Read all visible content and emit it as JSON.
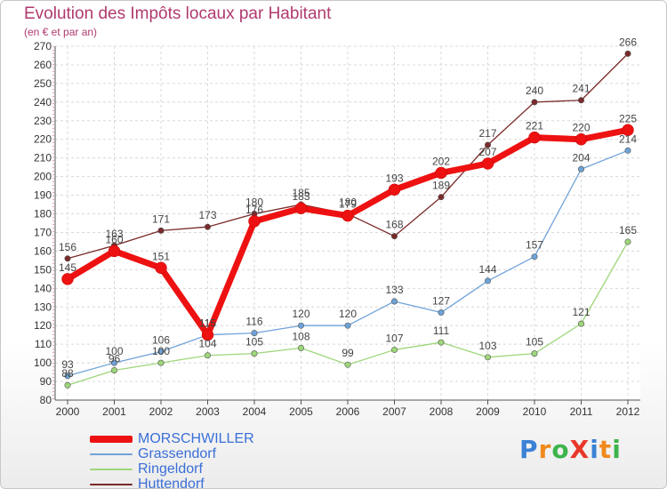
{
  "header": {
    "title": "Evolution des Impôts locaux par Habitant",
    "subtitle": "(en € et par an)"
  },
  "logo": {
    "text": "ProXiti",
    "letter_colors": [
      "#3b82d6",
      "#f08a1c",
      "#3cb44b",
      "#e8382a",
      "#3b82d6",
      "#f08a1c",
      "#3cb44b"
    ]
  },
  "chart_data": {
    "type": "line",
    "title": "Evolution des Impôts locaux par Habitant",
    "subtitle": "(en € et par an)",
    "xlabel": "",
    "ylabel": "",
    "x": [
      "2000",
      "2001",
      "2002",
      "2003",
      "2004",
      "2005",
      "2006",
      "2007",
      "2008",
      "2009",
      "2010",
      "2011",
      "2012"
    ],
    "ylim": [
      80,
      270
    ],
    "yticks": [
      80,
      90,
      100,
      110,
      120,
      130,
      140,
      150,
      160,
      170,
      180,
      190,
      200,
      210,
      220,
      230,
      240,
      250,
      260,
      270
    ],
    "grid": true,
    "legend_position": "bottom-left",
    "series": [
      {
        "name": "MORSCHWILLER",
        "color": "#ee1111",
        "values": [
          145,
          160,
          151,
          115,
          176,
          183,
          179,
          193,
          202,
          207,
          221,
          220,
          225
        ]
      },
      {
        "name": "Grassendorf",
        "color": "#6fa3d8",
        "values": [
          93,
          100,
          106,
          115,
          116,
          120,
          120,
          133,
          127,
          144,
          157,
          204,
          214
        ]
      },
      {
        "name": "Ringeldorf",
        "color": "#9ed67a",
        "values": [
          88,
          96,
          100,
          104,
          105,
          108,
          99,
          107,
          111,
          103,
          105,
          121,
          165
        ]
      },
      {
        "name": "Huttendorf",
        "color": "#7a2a2a",
        "values": [
          156,
          163,
          171,
          173,
          180,
          185,
          180,
          168,
          189,
          217,
          240,
          241,
          266
        ]
      }
    ]
  }
}
